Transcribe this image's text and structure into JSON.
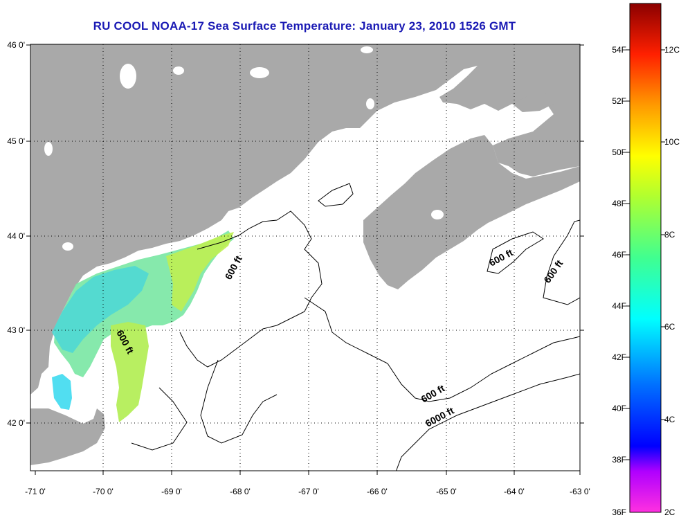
{
  "title": "RU COOL  NOAA-17  Sea Surface Temperature:  January 23, 2010 1526 GMT",
  "map": {
    "lat_labels": [
      "46 0'",
      "45 0'",
      "44 0'",
      "43 0'",
      "42 0'"
    ],
    "lon_labels": [
      "-71 0'",
      "-70 0'",
      "-69 0'",
      "-68 0'",
      "-67 0'",
      "-66 0'",
      "-65 0'",
      "-64 0'",
      "-63 0'"
    ],
    "lat_range": [
      41.5,
      46.0
    ],
    "lon_range": [
      -71.0,
      -63.0
    ],
    "grid": "dotted",
    "contour_labels": [
      "600 ft",
      "600 ft",
      "600 ft",
      "600 ft",
      "600 ft",
      "6000 ft"
    ],
    "colors": {
      "land": "#a9a9a9",
      "ocean": "#ffffff",
      "title": "#1a1ab4"
    }
  },
  "colorbar": {
    "fahrenheit_labels": [
      "54F",
      "52F",
      "50F",
      "48F",
      "46F",
      "44F",
      "42F",
      "40F",
      "38F",
      "36F"
    ],
    "celsius_labels": [
      "12C",
      "10C",
      "8C",
      "6C",
      "4C",
      "2C"
    ],
    "range_c": [
      2,
      13.3
    ]
  }
}
